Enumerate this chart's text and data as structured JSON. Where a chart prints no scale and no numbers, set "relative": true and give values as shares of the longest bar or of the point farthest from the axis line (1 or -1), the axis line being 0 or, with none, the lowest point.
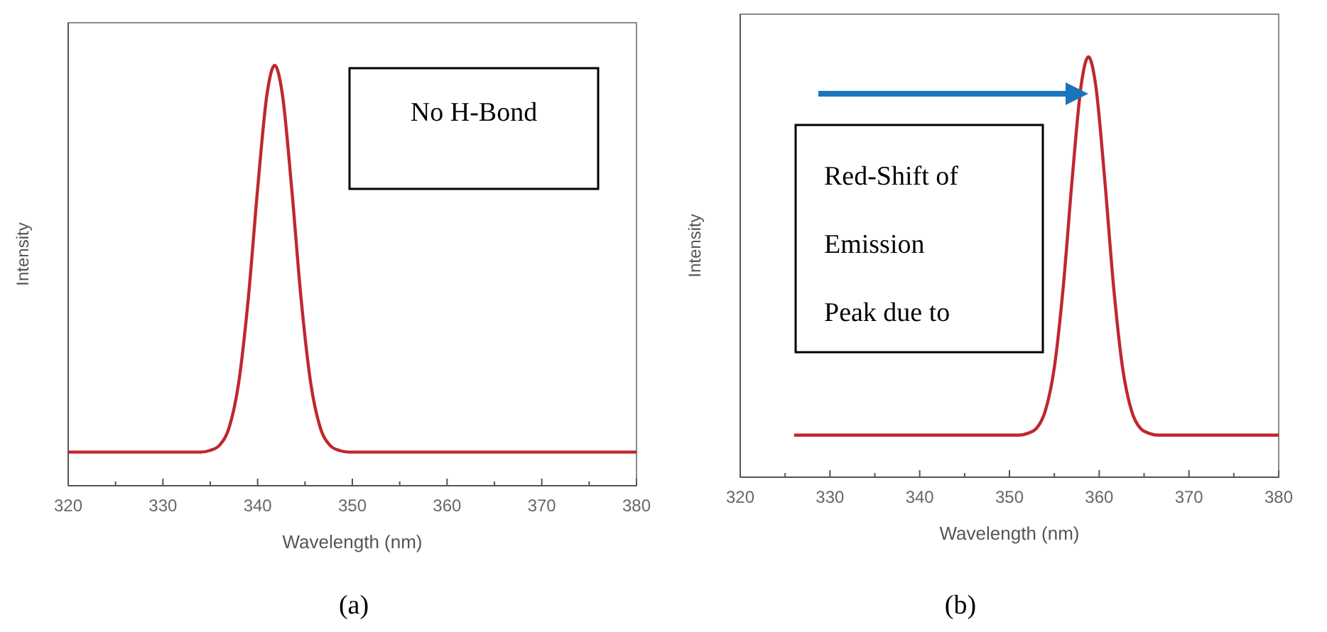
{
  "chart_data": [
    {
      "type": "line",
      "relative": true,
      "xlabel": "Wavelength (nm)",
      "ylabel": "Intensity",
      "xlim": [
        320,
        380
      ],
      "xticks": [
        320,
        {
          "value": 325,
          "label": null
        },
        330,
        {
          "value": 335,
          "label": null
        },
        340,
        {
          "value": 345,
          "label": null
        },
        350,
        {
          "value": 355,
          "label": null
        },
        360,
        {
          "value": 365,
          "label": null
        },
        370,
        {
          "value": 375,
          "label": null
        },
        380
      ],
      "grid": false,
      "marker": "none",
      "line_style": "solid",
      "series": [
        {
          "color": "#c0272d",
          "x": [
            320,
            334,
            335,
            336,
            337,
            338,
            339,
            340,
            341,
            341.8,
            342.6,
            343.6,
            344.6,
            345.6,
            346.6,
            347.6,
            348.6,
            349.6,
            380
          ],
          "values": [
            0.08,
            0.08,
            0.084,
            0.097,
            0.139,
            0.245,
            0.442,
            0.706,
            0.933,
            1,
            0.933,
            0.706,
            0.442,
            0.245,
            0.139,
            0.097,
            0.084,
            0.08,
            0.08
          ]
        }
      ],
      "annotations": [
        "No H-Bond",
        "(a)"
      ]
    },
    {
      "type": "line",
      "relative": true,
      "xlabel": "Wavelength (nm)",
      "ylabel": "Intensity",
      "xlim": [
        320,
        380
      ],
      "xticks": [
        320,
        {
          "value": 325,
          "label": null
        },
        330,
        {
          "value": 335,
          "label": null
        },
        340,
        {
          "value": 345,
          "label": null
        },
        350,
        {
          "value": 355,
          "label": null
        },
        360,
        {
          "value": 365,
          "label": null
        },
        370,
        {
          "value": 375,
          "label": null
        },
        380
      ],
      "grid": false,
      "marker": "none",
      "line_style": "solid",
      "series": [
        {
          "color": "#c0272d",
          "x": [
            326,
            351,
            352,
            353,
            354,
            355,
            356,
            357,
            358,
            358.8,
            359.6,
            360.6,
            361.6,
            362.6,
            363.6,
            364.6,
            365.6,
            366.6,
            380
          ],
          "values": [
            0.1,
            0.1,
            0.104,
            0.116,
            0.158,
            0.261,
            0.454,
            0.712,
            0.934,
            1,
            0.934,
            0.712,
            0.454,
            0.261,
            0.158,
            0.116,
            0.104,
            0.1,
            0.1
          ]
        }
      ],
      "annotations": [
        "Red-Shift of Emission Peak due to",
        "(b)"
      ]
    }
  ]
}
